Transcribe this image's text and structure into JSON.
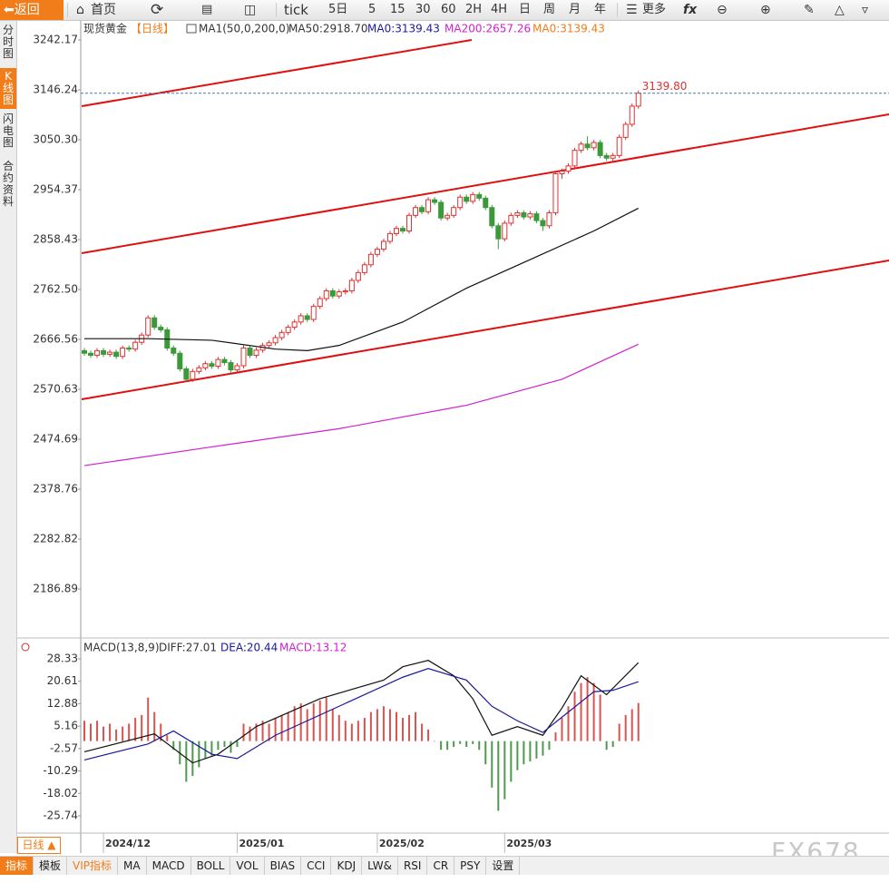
{
  "toolbar": [
    "返回",
    "首页",
    "tick",
    "5日",
    "5",
    "15",
    "30",
    "60",
    "2H",
    "4H",
    "日",
    "周",
    "月",
    "年",
    "更多"
  ],
  "sidebar": [
    "分时图",
    "K线图",
    "闪电图",
    "合约资料"
  ],
  "chart_data": [
    {
      "type": "candlestick",
      "title": "现货黄金",
      "period": "【日线】",
      "legend": [
        "MA1(50,0,200,0)",
        "MA50:2918.70",
        "MA0:3139.43",
        "MA200:2657.26",
        "MA0:3139.43"
      ],
      "ylim": [
        2098,
        3266.6
      ],
      "yticks": [
        3242.17,
        3146.24,
        {
          "value": 3050.3,
          "label": "3050.30"
        },
        2954.37,
        2858.43,
        {
          "value": 2762.5,
          "label": "2762.50"
        },
        2666.56,
        2570.63,
        2474.69,
        2378.76,
        2282.82,
        2186.89
      ],
      "up_color": "#e03030",
      "down_color": "#3a9a3a",
      "last_price": {
        "value": 3139.8,
        "label": "3139.80"
      },
      "candles": [
        [
          2645,
          2650,
          2635,
          2640
        ],
        [
          2640,
          2645,
          2631,
          2636
        ],
        [
          2636,
          2650,
          2631,
          2645
        ],
        [
          2645,
          2650,
          2633,
          2638
        ],
        [
          2638,
          2647,
          2633,
          2642
        ],
        [
          2642,
          2647,
          2629,
          2634
        ],
        [
          2634,
          2655,
          2629,
          2650
        ],
        [
          2650,
          2655,
          2643,
          2648
        ],
        [
          2648,
          2666,
          2643,
          2661
        ],
        [
          2661,
          2680,
          2656,
          2675
        ],
        [
          2675,
          2713,
          2670,
          2708
        ],
        [
          2708,
          2713,
          2685,
          2690
        ],
        [
          2690,
          2695,
          2680,
          2685
        ],
        [
          2685,
          2690,
          2645,
          2650
        ],
        [
          2650,
          2655,
          2635,
          2640
        ],
        [
          2640,
          2645,
          2605,
          2610
        ],
        [
          2610,
          2615,
          2585,
          2590
        ],
        [
          2590,
          2610,
          2585,
          2605
        ],
        [
          2605,
          2617,
          2600,
          2612
        ],
        [
          2612,
          2625,
          2607,
          2620
        ],
        [
          2620,
          2625,
          2610,
          2615
        ],
        [
          2615,
          2633,
          2610,
          2628
        ],
        [
          2628,
          2633,
          2617,
          2622
        ],
        [
          2622,
          2627,
          2603,
          2608
        ],
        [
          2608,
          2621,
          2603,
          2616
        ],
        [
          2616,
          2655,
          2611,
          2650
        ],
        [
          2650,
          2655,
          2631,
          2636
        ],
        [
          2636,
          2651,
          2631,
          2646
        ],
        [
          2646,
          2660,
          2641,
          2655
        ],
        [
          2655,
          2665,
          2650,
          2660
        ],
        [
          2660,
          2675,
          2655,
          2670
        ],
        [
          2670,
          2685,
          2665,
          2680
        ],
        [
          2680,
          2695,
          2675,
          2690
        ],
        [
          2690,
          2705,
          2685,
          2700
        ],
        [
          2700,
          2717,
          2695,
          2712
        ],
        [
          2712,
          2717,
          2700,
          2705
        ],
        [
          2705,
          2735,
          2700,
          2730
        ],
        [
          2730,
          2750,
          2725,
          2745
        ],
        [
          2745,
          2765,
          2740,
          2760
        ],
        [
          2760,
          2765,
          2745,
          2750
        ],
        [
          2750,
          2763,
          2745,
          2758
        ],
        [
          2758,
          2765,
          2753,
          2760
        ],
        [
          2760,
          2785,
          2755,
          2780
        ],
        [
          2780,
          2800,
          2775,
          2795
        ],
        [
          2795,
          2815,
          2790,
          2810
        ],
        [
          2810,
          2835,
          2805,
          2830
        ],
        [
          2830,
          2845,
          2825,
          2840
        ],
        [
          2840,
          2860,
          2835,
          2855
        ],
        [
          2855,
          2875,
          2850,
          2870
        ],
        [
          2870,
          2885,
          2865,
          2880
        ],
        [
          2880,
          2885,
          2870,
          2875
        ],
        [
          2875,
          2910,
          2870,
          2905
        ],
        [
          2905,
          2925,
          2900,
          2920
        ],
        [
          2920,
          2925,
          2907,
          2912
        ],
        [
          2912,
          2940,
          2907,
          2935
        ],
        [
          2935,
          2940,
          2925,
          2930
        ],
        [
          2930,
          2935,
          2895,
          2900
        ],
        [
          2900,
          2910,
          2895,
          2905
        ],
        [
          2905,
          2925,
          2900,
          2920
        ],
        [
          2920,
          2945,
          2915,
          2940
        ],
        [
          2940,
          2945,
          2927,
          2932
        ],
        [
          2932,
          2950,
          2927,
          2945
        ],
        [
          2945,
          2950,
          2933,
          2938
        ],
        [
          2938,
          2943,
          2915,
          2920
        ],
        [
          2920,
          2925,
          2880,
          2885
        ],
        [
          2885,
          2890,
          2840,
          2860
        ],
        [
          2860,
          2895,
          2855,
          2890
        ],
        [
          2890,
          2910,
          2885,
          2905
        ],
        [
          2905,
          2915,
          2900,
          2910
        ],
        [
          2910,
          2915,
          2897,
          2902
        ],
        [
          2902,
          2913,
          2897,
          2908
        ],
        [
          2908,
          2913,
          2890,
          2895
        ],
        [
          2895,
          2900,
          2875,
          2885
        ],
        [
          2885,
          2915,
          2880,
          2910
        ],
        [
          2910,
          2990,
          2905,
          2985
        ],
        [
          2985,
          2995,
          2975,
          2990
        ],
        [
          2990,
          3005,
          2985,
          3000
        ],
        [
          3000,
          3035,
          2995,
          3030
        ],
        [
          3030,
          3047,
          3025,
          3042
        ],
        [
          3042,
          3057,
          3030,
          3035
        ],
        [
          3035,
          3050,
          3030,
          3045
        ],
        [
          3045,
          3050,
          3015,
          3020
        ],
        [
          3020,
          3025,
          3010,
          3015
        ],
        [
          3015,
          3025,
          3010,
          3020
        ],
        [
          3020,
          3060,
          3015,
          3055
        ],
        [
          3055,
          3085,
          3050,
          3080
        ],
        [
          3080,
          3120,
          3075,
          3115
        ],
        [
          3115,
          3145,
          3110,
          3139.8
        ]
      ],
      "series": [
        {
          "color": "#111111",
          "x": [
            0,
            10,
            20,
            30,
            35,
            40,
            50,
            60,
            70,
            80,
            87
          ],
          "values": [
            2668,
            2668,
            2665,
            2648,
            2645,
            2655,
            2700,
            2765,
            2820,
            2875,
            2918.7
          ]
        },
        {
          "color": "#d020d0",
          "x": [
            0,
            20,
            40,
            60,
            75,
            87
          ],
          "values": [
            2424,
            2460,
            2495,
            2540,
            2590,
            2657.26
          ]
        }
      ]
    },
    {
      "type": "macd",
      "title": "MACD(13,8,9)",
      "legend": [
        "DIFF:27.01",
        "DEA:20.44",
        "MACD:13.12"
      ],
      "ylim": [
        -30.74,
        34.89
      ],
      "yticks": [
        28.33,
        20.61,
        12.88,
        5.16,
        -2.57,
        -10.29,
        -18.02,
        -25.74
      ],
      "xticks": [
        {
          "value": 3,
          "label": "2024/12"
        },
        {
          "value": 24,
          "label": "2025/01"
        },
        {
          "value": 46,
          "label": "2025/02"
        },
        {
          "value": 66,
          "label": "2025/03"
        }
      ],
      "up_color": "#d9534f",
      "down_color": "#4e9a4e",
      "histogram": [
        7,
        6,
        7,
        5,
        6,
        4,
        5,
        6,
        8,
        9,
        15,
        10,
        6,
        2,
        -3,
        -8,
        -14,
        -12,
        -9,
        -6,
        -5,
        -3,
        -2,
        -4,
        -2,
        6,
        5,
        6,
        7,
        6,
        8,
        9,
        10,
        12,
        13,
        11,
        13,
        14,
        15,
        11,
        9,
        7,
        6,
        7,
        8,
        10,
        11,
        12,
        11,
        10,
        8,
        9,
        10,
        6,
        4,
        0,
        -3,
        -3,
        -2,
        -1,
        -2,
        -1,
        -3,
        -8,
        -16,
        -24,
        -20,
        -14,
        -10,
        -8,
        -7,
        -6,
        -5,
        -3,
        3,
        8,
        12,
        17,
        20,
        22,
        20,
        16,
        -3,
        -2,
        6,
        9,
        11,
        13.12
      ],
      "series": [
        {
          "color": "#111111",
          "x": [
            0,
            11,
            17,
            21,
            27,
            37,
            47,
            50,
            54,
            58,
            61,
            64,
            68,
            72,
            75,
            78,
            82,
            87
          ],
          "values": [
            -3.7,
            2.5,
            -7.5,
            -4.5,
            5,
            14.6,
            21,
            25.6,
            27.8,
            22.5,
            14.6,
            2,
            5,
            2,
            11.4,
            22.5,
            16,
            27.01
          ]
        },
        {
          "color": "#1a1a9a",
          "x": [
            0,
            10,
            14,
            20,
            24,
            30,
            40,
            50,
            54,
            60,
            64,
            68,
            72,
            76,
            80,
            83,
            87
          ],
          "values": [
            -6.5,
            -1,
            3.5,
            -4.5,
            -6,
            2,
            12,
            22,
            25,
            21,
            12,
            7,
            3,
            10,
            17,
            17.5,
            20.44
          ]
        }
      ]
    }
  ],
  "bottom": {
    "period_button": "日线 ▲",
    "tabs": [
      "指标",
      "模板",
      "VIP指标",
      "MA",
      "MACD",
      "BOLL",
      "VOL",
      "BIAS",
      "CCI",
      "KDJ",
      "LW&",
      "RSI",
      "CR",
      "PSY",
      "设置"
    ]
  },
  "watermark": "FX678"
}
